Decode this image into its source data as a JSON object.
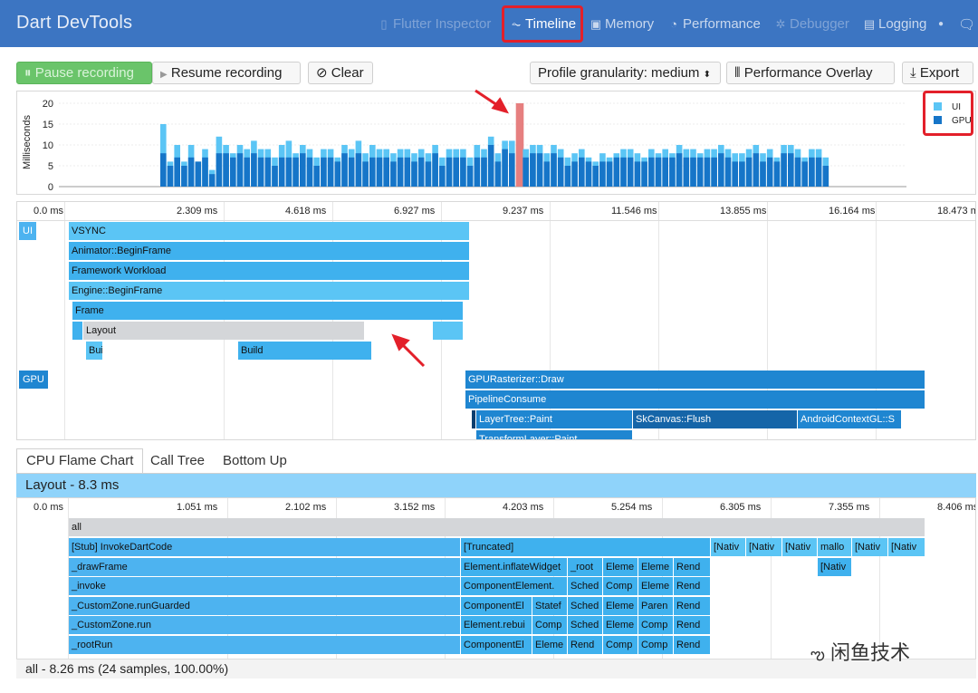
{
  "header": {
    "app_title": "Dart DevTools",
    "tabs": [
      {
        "label": "Flutter Inspector",
        "icon": "phone-icon",
        "state": "disabled"
      },
      {
        "label": "Timeline",
        "icon": "pulse-icon",
        "state": "active"
      },
      {
        "label": "Memory",
        "icon": "cube-icon",
        "state": "normal"
      },
      {
        "label": "Performance",
        "icon": "gauge-icon",
        "state": "normal"
      },
      {
        "label": "Debugger",
        "icon": "bug-icon",
        "state": "disabled"
      },
      {
        "label": "Logging",
        "icon": "log-icon",
        "state": "normal"
      }
    ]
  },
  "toolbar": {
    "pause": "Pause recording",
    "resume": "Resume recording",
    "clear": "Clear",
    "granularity": "Profile granularity: medium",
    "overlay": "Performance Overlay",
    "export": "Export"
  },
  "frame_chart": {
    "ylabel": "Milliseconds",
    "yticks": [
      "0",
      "5",
      "10",
      "15",
      "20"
    ],
    "legend": [
      {
        "name": "UI",
        "color": "#5bc5f5"
      },
      {
        "name": "GPU",
        "color": "#1675c8"
      }
    ],
    "selected_color": "#e67f7f",
    "frames_ui": [
      15,
      6,
      10,
      6,
      10,
      6,
      9,
      4,
      12,
      10,
      8,
      10,
      9,
      11,
      9,
      9,
      7,
      10,
      11,
      8,
      10,
      9,
      7,
      9,
      9,
      7,
      10,
      9,
      11,
      8,
      10,
      9,
      9,
      8,
      9,
      9,
      8,
      9,
      8,
      10,
      7,
      9,
      9,
      9,
      7,
      10,
      9,
      12,
      8,
      11,
      11,
      20,
      9,
      10,
      10,
      8,
      10,
      9,
      7,
      8,
      9,
      7,
      6,
      8,
      7,
      8,
      9,
      9,
      8,
      7,
      9,
      8,
      9,
      8,
      10,
      9,
      9,
      8,
      9,
      9,
      10,
      9,
      8,
      8,
      9,
      10,
      8,
      9,
      7,
      10,
      10,
      9,
      7,
      9,
      9,
      7
    ],
    "frames_gpu": [
      8,
      5,
      7,
      5,
      7,
      6,
      7,
      3,
      8,
      8,
      7,
      8,
      7,
      8,
      7,
      7,
      5,
      7,
      7,
      7,
      8,
      7,
      5,
      7,
      7,
      6,
      8,
      7,
      8,
      6,
      7,
      7,
      7,
      6,
      7,
      7,
      6,
      7,
      6,
      8,
      5,
      7,
      7,
      7,
      5,
      7,
      7,
      10,
      6,
      9,
      8,
      20,
      7,
      8,
      8,
      6,
      8,
      7,
      5,
      6,
      7,
      6,
      5,
      6,
      6,
      7,
      7,
      7,
      6,
      6,
      7,
      7,
      7,
      7,
      8,
      7,
      7,
      7,
      7,
      7,
      8,
      7,
      6,
      6,
      7,
      8,
      6,
      7,
      6,
      8,
      8,
      7,
      6,
      7,
      7,
      5
    ],
    "selected_index": 51
  },
  "timeline": {
    "ticks": [
      "0.0 ms",
      "2.309 ms",
      "4.618 ms",
      "6.927 ms",
      "9.237 ms",
      "11.546 ms",
      "13.855 ms",
      "16.164 ms",
      "18.473 ms"
    ],
    "ui_label": "UI",
    "gpu_label": "GPU",
    "events": [
      "VSYNC",
      "Animator::BeginFrame",
      "Framework Workload",
      "Engine::BeginFrame",
      "Frame",
      "Layout",
      "Build",
      "Build",
      "GPURasterizer::Draw",
      "PipelineConsume",
      "LayerTree::Paint",
      "SkCanvas::Flush",
      "AndroidContextGL::S",
      "TransformLayer::Paint"
    ],
    "colors": {
      "light": "#5bc5f5",
      "mid": "#3fb1ee",
      "gpu": "#1f86d1",
      "gpu_dark": "#1565a8",
      "grey": "#d4d6d9"
    }
  },
  "cpu": {
    "tabs": [
      "CPU Flame Chart",
      "Call Tree",
      "Bottom Up"
    ],
    "selection": "Layout - 8.3 ms",
    "ticks": [
      "0.0 ms",
      "1.051 ms",
      "2.102 ms",
      "3.152 ms",
      "4.203 ms",
      "5.254 ms",
      "6.305 ms",
      "7.355 ms",
      "8.406 ms"
    ],
    "root": "all",
    "rows": [
      [
        "[Stub] InvokeDartCode",
        "[Truncated]",
        "[Nativ",
        "[Nativ",
        "[Nativ",
        "mallo",
        "[Nativ",
        "[Nativ"
      ],
      [
        "_drawFrame",
        "Element.inflateWidget",
        "_root",
        "Eleme",
        "Eleme",
        "Rend",
        "[Nativ"
      ],
      [
        "_invoke",
        "ComponentElement.",
        "Sched",
        "Comp",
        "Eleme",
        "Rend"
      ],
      [
        "_CustomZone.runGuarded",
        "ComponentEl",
        "Statef",
        "Sched",
        "Eleme",
        "Paren",
        "Rend"
      ],
      [
        "_CustomZone.run",
        "Element.rebui",
        "Comp",
        "Sched",
        "Eleme",
        "Comp",
        "Rend"
      ],
      [
        "_rootRun",
        "ComponentEl",
        "Eleme",
        "Rend",
        "Comp",
        "Comp",
        "Rend"
      ]
    ],
    "status": "all - 8.26 ms (24 samples, 100.00%)"
  },
  "watermark": "闲鱼技术"
}
